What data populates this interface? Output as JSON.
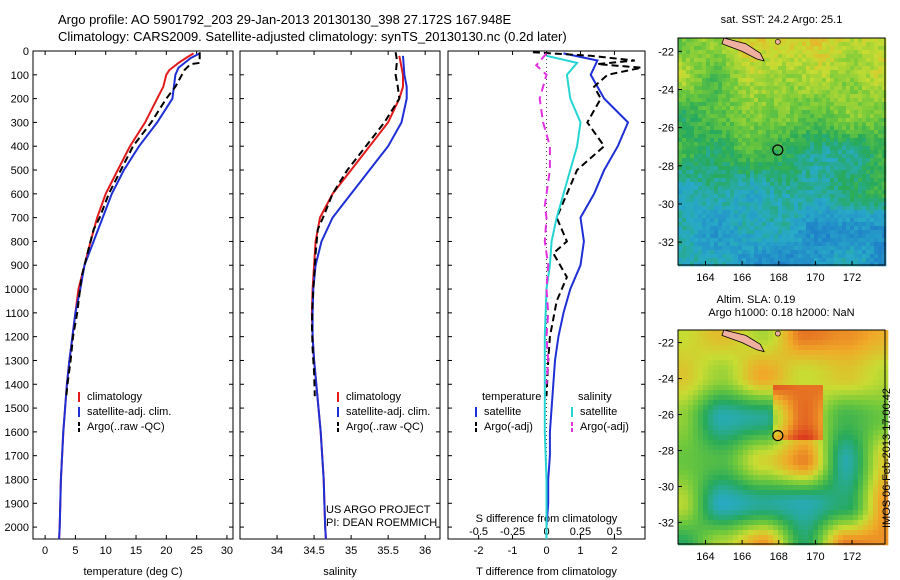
{
  "title": {
    "line1": "Argo profile: AO 5901792_203 29-Jan-2013 20130130_398 27.172S 167.948E",
    "line2": "Climatology: CARS2009. Satellite-adjusted climatology: synTS_20130130.nc (0.2d later)"
  },
  "side_label": "IMOS 06-Feb-2013 17:00:42",
  "depth_ticks": [
    0,
    100,
    200,
    300,
    400,
    500,
    600,
    700,
    800,
    900,
    1000,
    1100,
    1200,
    1300,
    1400,
    1500,
    1600,
    1700,
    1800,
    1900,
    2000
  ],
  "colors": {
    "climatology": "#e31a1c",
    "satellite": "#1f2fd6",
    "argo": "#000000",
    "sal_sat": "#26d4d4",
    "sal_argo": "#e030e0"
  },
  "chart_data": [
    {
      "type": "line",
      "id": "temperature",
      "xlabel": "temperature (deg C)",
      "xlim": [
        -2,
        31
      ],
      "ylim": [
        2050,
        0
      ],
      "xticks": [
        0,
        5,
        10,
        15,
        20,
        25,
        30
      ],
      "legend": {
        "position": "bottom-left",
        "entries": [
          "climatology",
          "satellite-adj. clim.",
          "Argo(..raw -QC)"
        ]
      },
      "series": [
        {
          "name": "climatology",
          "color": "#e31a1c",
          "dash": "",
          "points": [
            [
              24.5,
              10
            ],
            [
              23.5,
              25
            ],
            [
              22,
              50
            ],
            [
              20.5,
              80
            ],
            [
              20,
              100
            ],
            [
              19.5,
              150
            ],
            [
              18.5,
              200
            ],
            [
              16.5,
              300
            ],
            [
              14,
              400
            ],
            [
              12,
              500
            ],
            [
              10,
              600
            ],
            [
              8.6,
              700
            ],
            [
              7.5,
              800
            ],
            [
              6.5,
              900
            ],
            [
              5.5,
              1000
            ],
            [
              5,
              1100
            ],
            [
              4.5,
              1200
            ],
            [
              4,
              1300
            ],
            [
              3.6,
              1400
            ],
            [
              3.3,
              1500
            ],
            [
              3,
              1600
            ],
            [
              2.8,
              1700
            ],
            [
              2.6,
              1800
            ],
            [
              2.5,
              1900
            ],
            [
              2.4,
              2000
            ],
            [
              2.3,
              2050
            ]
          ]
        },
        {
          "name": "satellite-adj. clim.",
          "color": "#1f2fd6",
          "dash": "",
          "points": [
            [
              25.5,
              10
            ],
            [
              24,
              30
            ],
            [
              22,
              70
            ],
            [
              21.5,
              100
            ],
            [
              21,
              200
            ],
            [
              18.5,
              300
            ],
            [
              15.5,
              400
            ],
            [
              13,
              500
            ],
            [
              11,
              600
            ],
            [
              9.5,
              700
            ],
            [
              8,
              800
            ],
            [
              6.5,
              900
            ],
            [
              5.8,
              1000
            ],
            [
              5,
              1100
            ],
            [
              4.5,
              1200
            ],
            [
              4,
              1300
            ],
            [
              3.6,
              1400
            ],
            [
              3.3,
              1500
            ],
            [
              3,
              1600
            ],
            [
              2.8,
              1700
            ],
            [
              2.6,
              1800
            ],
            [
              2.5,
              1900
            ],
            [
              2.4,
              2000
            ],
            [
              2.3,
              2050
            ]
          ]
        },
        {
          "name": "Argo(..raw -QC)",
          "color": "#000000",
          "dash": "7,4",
          "points": [
            [
              25.5,
              5
            ],
            [
              25.5,
              50
            ],
            [
              24,
              55
            ],
            [
              23,
              80
            ],
            [
              21.5,
              150
            ],
            [
              20,
              200
            ],
            [
              17.5,
              300
            ],
            [
              14.5,
              400
            ],
            [
              12.5,
              500
            ],
            [
              10.5,
              600
            ],
            [
              9,
              700
            ],
            [
              8,
              750
            ],
            [
              7,
              850
            ],
            [
              6,
              950
            ],
            [
              5.3,
              1100
            ],
            [
              4.6,
              1200
            ],
            [
              4.2,
              1300
            ],
            [
              3.7,
              1400
            ],
            [
              3.5,
              1450
            ]
          ]
        }
      ]
    },
    {
      "type": "line",
      "id": "salinity",
      "xlabel": "salinity",
      "xlim": [
        33.5,
        36.2
      ],
      "ylim": [
        2050,
        0
      ],
      "xticks": [
        34,
        34.5,
        35,
        35.5,
        36
      ],
      "legend": {
        "position": "bottom-right",
        "entries": [
          "climatology",
          "satellite-adj. clim.",
          "Argo(..raw -QC)"
        ]
      },
      "annotations": [
        "US ARGO PROJECT",
        "PI: DEAN ROEMMICH"
      ],
      "series": [
        {
          "name": "climatology",
          "color": "#e31a1c",
          "dash": "",
          "points": [
            [
              35.65,
              20
            ],
            [
              35.7,
              100
            ],
            [
              35.7,
              150
            ],
            [
              35.65,
              200
            ],
            [
              35.5,
              300
            ],
            [
              35.25,
              400
            ],
            [
              35.0,
              500
            ],
            [
              34.75,
              600
            ],
            [
              34.58,
              700
            ],
            [
              34.52,
              800
            ],
            [
              34.5,
              900
            ],
            [
              34.48,
              1000
            ],
            [
              34.47,
              1100
            ],
            [
              34.48,
              1200
            ],
            [
              34.5,
              1300
            ],
            [
              34.53,
              1400
            ],
            [
              34.56,
              1500
            ],
            [
              34.59,
              1600
            ],
            [
              34.61,
              1700
            ],
            [
              34.63,
              1800
            ],
            [
              34.64,
              1900
            ],
            [
              34.65,
              2000
            ],
            [
              34.66,
              2050
            ]
          ]
        },
        {
          "name": "satellite-adj. clim.",
          "color": "#1f2fd6",
          "dash": "",
          "points": [
            [
              35.7,
              20
            ],
            [
              35.72,
              100
            ],
            [
              35.75,
              150
            ],
            [
              35.75,
              200
            ],
            [
              35.68,
              300
            ],
            [
              35.5,
              400
            ],
            [
              35.25,
              500
            ],
            [
              35.0,
              600
            ],
            [
              34.75,
              700
            ],
            [
              34.6,
              800
            ],
            [
              34.52,
              900
            ],
            [
              34.49,
              1000
            ],
            [
              34.48,
              1100
            ],
            [
              34.48,
              1200
            ],
            [
              34.5,
              1300
            ],
            [
              34.53,
              1400
            ],
            [
              34.56,
              1500
            ],
            [
              34.59,
              1600
            ],
            [
              34.61,
              1700
            ],
            [
              34.63,
              1800
            ],
            [
              34.64,
              1900
            ],
            [
              34.65,
              2000
            ],
            [
              34.66,
              2050
            ]
          ]
        },
        {
          "name": "Argo(..raw -QC)",
          "color": "#000000",
          "dash": "7,4",
          "points": [
            [
              35.6,
              5
            ],
            [
              35.62,
              40
            ],
            [
              35.6,
              100
            ],
            [
              35.63,
              150
            ],
            [
              35.65,
              200
            ],
            [
              35.45,
              300
            ],
            [
              35.2,
              400
            ],
            [
              34.95,
              500
            ],
            [
              34.75,
              600
            ],
            [
              34.62,
              700
            ],
            [
              34.55,
              750
            ],
            [
              34.52,
              850
            ],
            [
              34.5,
              950
            ],
            [
              34.48,
              1050
            ],
            [
              34.47,
              1150
            ],
            [
              34.48,
              1250
            ],
            [
              34.5,
              1350
            ],
            [
              34.51,
              1450
            ]
          ]
        }
      ]
    },
    {
      "type": "line",
      "id": "difference",
      "xlabel": "T difference from climatology",
      "xlabel2": "S difference from climatology",
      "xlim": [
        -2.9,
        2.9
      ],
      "ylim": [
        2050,
        0
      ],
      "xticks": [
        -2,
        -1,
        0,
        1,
        2
      ],
      "xticks2": [
        {
          "label": "-0.5",
          "value": -0.5
        },
        {
          "label": "-0.25",
          "value": -0.25
        },
        {
          "label": "0",
          "value": 0
        },
        {
          "label": "0.25",
          "value": 0.25
        },
        {
          "label": "0.5",
          "value": 0.5
        }
      ],
      "legend": {
        "position": "bottom",
        "groups": [
          {
            "title": "temperature",
            "entries": [
              "satellite",
              "Argo(-adj)"
            ]
          },
          {
            "title": "salinity",
            "entries": [
              "satellite",
              "Argo(-adj)"
            ]
          }
        ]
      },
      "series": [
        {
          "name": "T satellite",
          "color": "#1f2fd6",
          "dash": "",
          "points": [
            [
              0.5,
              10
            ],
            [
              1.5,
              40
            ],
            [
              1.3,
              100
            ],
            [
              1.7,
              200
            ],
            [
              2.4,
              300
            ],
            [
              2.1,
              400
            ],
            [
              1.7,
              500
            ],
            [
              1.4,
              600
            ],
            [
              1.0,
              700
            ],
            [
              1.1,
              800
            ],
            [
              1.0,
              900
            ],
            [
              0.7,
              1000
            ],
            [
              0.5,
              1100
            ],
            [
              0.35,
              1200
            ],
            [
              0.25,
              1300
            ],
            [
              0.2,
              1400
            ],
            [
              0.15,
              1500
            ],
            [
              0.1,
              1600
            ],
            [
              0.1,
              1700
            ],
            [
              0.05,
              1800
            ],
            [
              0.05,
              1900
            ],
            [
              0.0,
              2000
            ],
            [
              0.0,
              2050
            ]
          ]
        },
        {
          "name": "T Argo(-adj)",
          "color": "#000000",
          "dash": "7,4",
          "points": [
            [
              -0.4,
              5
            ],
            [
              1.3,
              20
            ],
            [
              2.6,
              40
            ],
            [
              1.5,
              55
            ],
            [
              2.8,
              70
            ],
            [
              1.8,
              100
            ],
            [
              1.4,
              150
            ],
            [
              1.6,
              200
            ],
            [
              1.2,
              300
            ],
            [
              1.7,
              400
            ],
            [
              0.9,
              500
            ],
            [
              0.6,
              600
            ],
            [
              0.3,
              700
            ],
            [
              0.6,
              800
            ],
            [
              0.2,
              850
            ],
            [
              0.6,
              950
            ],
            [
              0.3,
              1050
            ],
            [
              0.1,
              1200
            ],
            [
              0.05,
              1300
            ],
            [
              0.0,
              1450
            ]
          ]
        },
        {
          "name": "S satellite",
          "color": "#26d4d4",
          "dash": "",
          "points": [
            [
              0.0,
              20
            ],
            [
              0.9,
              50
            ],
            [
              0.6,
              100
            ],
            [
              0.7,
              200
            ],
            [
              1.0,
              300
            ],
            [
              0.9,
              400
            ],
            [
              0.7,
              500
            ],
            [
              0.5,
              600
            ],
            [
              0.3,
              700
            ],
            [
              0.15,
              800
            ],
            [
              0.1,
              900
            ],
            [
              0.0,
              1000
            ],
            [
              -0.05,
              1200
            ],
            [
              -0.05,
              1400
            ],
            [
              -0.05,
              1600
            ],
            [
              0.0,
              1800
            ],
            [
              0.0,
              2050
            ]
          ]
        },
        {
          "name": "S Argo(-adj)",
          "color": "#e030e0",
          "dash": "8,5",
          "points": [
            [
              0.0,
              10
            ],
            [
              -0.3,
              60
            ],
            [
              0.0,
              100
            ],
            [
              -0.2,
              200
            ],
            [
              -0.1,
              300
            ],
            [
              0.1,
              400
            ],
            [
              0.1,
              500
            ],
            [
              0.0,
              600
            ],
            [
              -0.05,
              650
            ],
            [
              0.0,
              700
            ],
            [
              -0.05,
              800
            ],
            [
              0.05,
              900
            ],
            [
              0.0,
              1000
            ],
            [
              0.05,
              1100
            ],
            [
              0.0,
              1200
            ],
            [
              0.05,
              1300
            ],
            [
              0.0,
              1400
            ]
          ]
        }
      ]
    }
  ],
  "maps": {
    "xticks": [
      164,
      166,
      168,
      170,
      172
    ],
    "yticks": [
      -22,
      -24,
      -26,
      -28,
      -30,
      -32
    ],
    "xlim": [
      162.5,
      173.8
    ],
    "ylim": [
      -33.2,
      -21.3
    ],
    "marker": {
      "lon": 167.948,
      "lat": -27.172
    },
    "sst": {
      "title": "sat. SST: 24.2 Argo: 25.1"
    },
    "sla": {
      "title_line1": "Altim. SLA: 0.19",
      "title_line2": "Argo h1000: 0.18 h2000: NaN"
    }
  }
}
